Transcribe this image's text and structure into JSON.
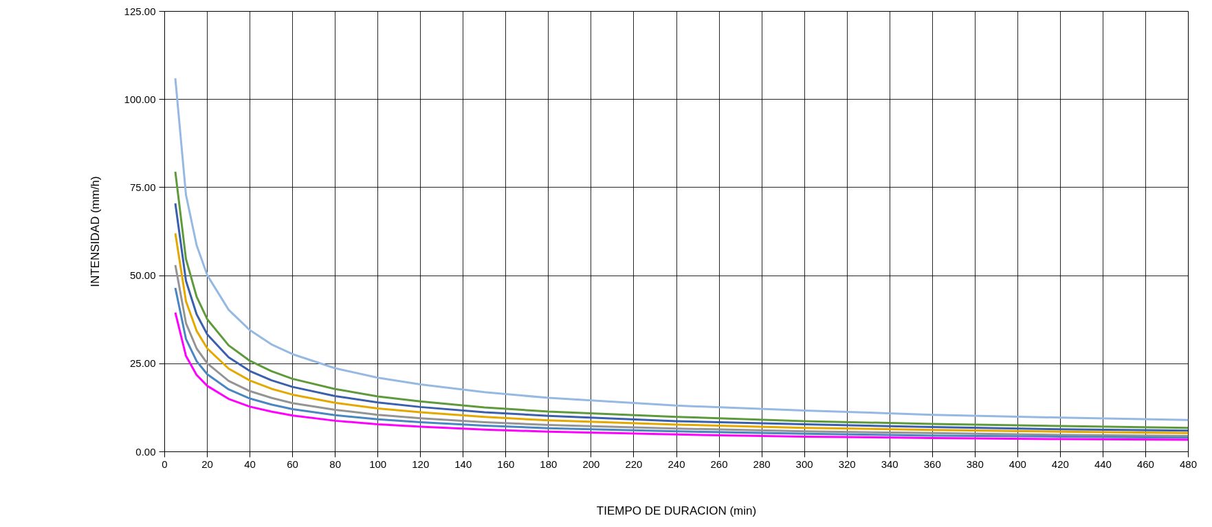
{
  "chart_data": {
    "type": "line",
    "xlabel": "TIEMPO DE DURACION (min)",
    "ylabel": "INTENSIDAD (mm/h)",
    "x": [
      5,
      10,
      15,
      20,
      30,
      40,
      50,
      60,
      80,
      100,
      120,
      150,
      180,
      240,
      300,
      360,
      420,
      480
    ],
    "xlim": [
      0,
      480
    ],
    "xticks": [
      0,
      20,
      40,
      60,
      80,
      100,
      120,
      140,
      160,
      180,
      200,
      220,
      240,
      260,
      280,
      300,
      320,
      340,
      360,
      380,
      400,
      420,
      440,
      460,
      480
    ],
    "ylim": [
      0,
      125
    ],
    "yticks": [
      {
        "value": 0,
        "label": "0.00"
      },
      {
        "value": 25,
        "label": "25.00"
      },
      {
        "value": 50,
        "label": "50.00"
      },
      {
        "value": 75,
        "label": "75.00"
      },
      {
        "value": 100,
        "label": "100.00"
      },
      {
        "value": 125,
        "label": "125.00"
      }
    ],
    "grid": true,
    "marker": "none",
    "line_style": "solid",
    "series": [
      {
        "color": "#95b9e2",
        "values": [
          106,
          72.9,
          58.6,
          50.1,
          40.3,
          34.5,
          30.5,
          27.7,
          23.7,
          21.0,
          19.1,
          16.9,
          15.3,
          13.1,
          11.7,
          10.5,
          9.7,
          9.0
        ]
      },
      {
        "color": "#5e9a3c",
        "values": [
          79.5,
          54.7,
          44.0,
          37.6,
          30.2,
          25.8,
          22.9,
          20.7,
          17.8,
          15.7,
          14.3,
          12.6,
          11.4,
          9.9,
          8.7,
          7.9,
          7.3,
          6.8
        ]
      },
      {
        "color": "#3a5fad",
        "values": [
          70.5,
          48.5,
          39.0,
          33.3,
          26.8,
          22.9,
          20.3,
          18.4,
          15.8,
          14.0,
          12.7,
          11.2,
          10.2,
          8.7,
          7.8,
          7.0,
          6.4,
          6.0
        ]
      },
      {
        "color": "#e5a800",
        "values": [
          62,
          42.7,
          34.3,
          29.3,
          23.6,
          20.2,
          17.9,
          16.2,
          13.9,
          12.3,
          11.2,
          9.9,
          8.9,
          7.7,
          6.8,
          6.2,
          5.7,
          5.3
        ]
      },
      {
        "color": "#949494",
        "values": [
          53,
          36.5,
          29.3,
          25.1,
          20.1,
          17.2,
          15.3,
          13.8,
          11.9,
          10.5,
          9.5,
          8.4,
          7.6,
          6.6,
          5.8,
          5.3,
          4.8,
          4.5
        ]
      },
      {
        "color": "#4a86c0",
        "values": [
          46.5,
          32.0,
          25.7,
          22.0,
          17.7,
          15.1,
          13.4,
          12.1,
          10.4,
          9.2,
          8.4,
          7.4,
          6.7,
          5.8,
          5.1,
          4.6,
          4.3,
          4.0
        ]
      },
      {
        "color": "#ff00ff",
        "values": [
          39.5,
          27.2,
          21.8,
          18.7,
          15.0,
          12.8,
          11.4,
          10.3,
          8.8,
          7.8,
          7.1,
          6.3,
          5.7,
          4.9,
          4.3,
          3.9,
          3.6,
          3.4
        ]
      }
    ]
  }
}
